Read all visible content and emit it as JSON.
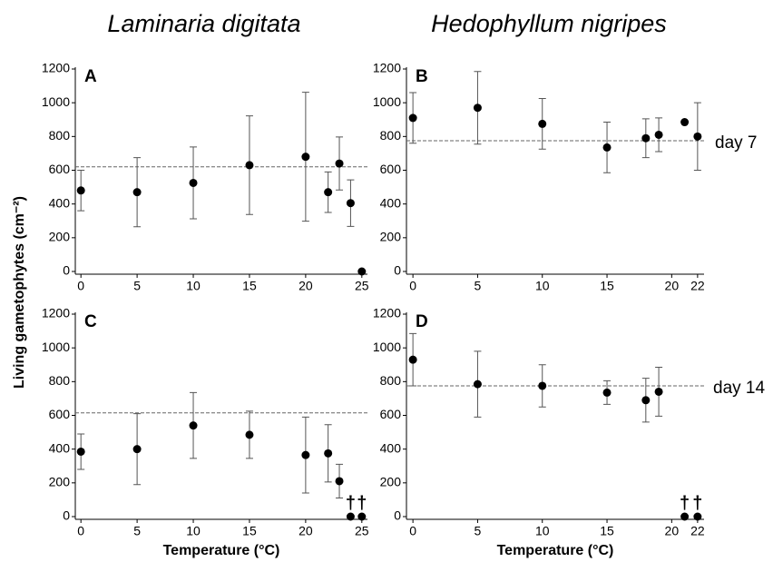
{
  "column_titles": [
    "Laminaria digitata",
    "Hedophyllum nigripes"
  ],
  "row_labels": [
    "day 7",
    "day 14"
  ],
  "ylabel": "Living gametophytes (cm⁻²)",
  "chart_data": [
    {
      "type": "scatter",
      "title": "A",
      "color": "#000000",
      "x": [
        0,
        5,
        10,
        15,
        20,
        22,
        23,
        24,
        25
      ],
      "values": [
        480,
        470,
        525,
        630,
        680,
        470,
        640,
        405,
        0
      ],
      "errors": [
        120,
        205,
        213,
        292,
        382,
        120,
        157,
        138,
        null
      ],
      "reference_line": 620,
      "xlim": [
        -0.5,
        25.5
      ],
      "ylim": [
        0,
        1200
      ],
      "xticks": [
        0,
        5,
        10,
        15,
        20,
        25
      ],
      "yticks": [
        0,
        200,
        400,
        600,
        800,
        1000,
        1200
      ]
    },
    {
      "type": "scatter",
      "title": "B",
      "color": "#000000",
      "x": [
        0,
        5,
        10,
        15,
        18,
        19,
        21,
        22
      ],
      "values": [
        910,
        970,
        875,
        735,
        790,
        810,
        885,
        800
      ],
      "errors": [
        150,
        215,
        150,
        150,
        115,
        100,
        null,
        200
      ],
      "reference_line": 775,
      "xlim": [
        -0.5,
        22.5
      ],
      "ylim": [
        0,
        1200
      ],
      "xticks": [
        0,
        5,
        10,
        15,
        20,
        22
      ],
      "yticks": [
        0,
        200,
        400,
        600,
        800,
        1000,
        1200
      ]
    },
    {
      "type": "scatter",
      "title": "C",
      "color": "#000000",
      "xlabel": "Temperature (°C)",
      "x": [
        0,
        5,
        10,
        15,
        20,
        22,
        23,
        24,
        25
      ],
      "values": [
        385,
        400,
        540,
        485,
        365,
        375,
        210,
        0,
        0
      ],
      "errors": [
        105,
        210,
        195,
        140,
        225,
        170,
        100,
        null,
        null
      ],
      "reference_line": 615,
      "annotations": [
        {
          "text": "†",
          "x": 24
        },
        {
          "text": "†",
          "x": 25
        }
      ],
      "xlim": [
        -0.5,
        25.5
      ],
      "ylim": [
        0,
        1200
      ],
      "xticks": [
        0,
        5,
        10,
        15,
        20,
        25
      ],
      "yticks": [
        0,
        200,
        400,
        600,
        800,
        1000,
        1200
      ]
    },
    {
      "type": "scatter",
      "title": "D",
      "color": "#000000",
      "xlabel": "Temperature (°C)",
      "x": [
        0,
        5,
        10,
        15,
        18,
        19,
        21,
        22
      ],
      "values": [
        930,
        785,
        775,
        735,
        690,
        740,
        0,
        0
      ],
      "errors": [
        155,
        195,
        125,
        70,
        130,
        145,
        null,
        null
      ],
      "reference_line": 775,
      "annotations": [
        {
          "text": "†",
          "x": 21
        },
        {
          "text": "†",
          "x": 22
        }
      ],
      "xlim": [
        -0.5,
        22.5
      ],
      "ylim": [
        0,
        1200
      ],
      "xticks": [
        0,
        5,
        10,
        15,
        20,
        22
      ],
      "yticks": [
        0,
        200,
        400,
        600,
        800,
        1000,
        1200
      ]
    }
  ]
}
